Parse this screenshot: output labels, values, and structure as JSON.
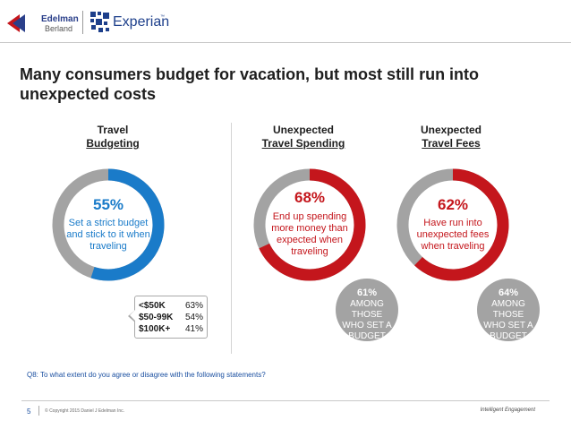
{
  "header": {
    "edelman_line1": "Edelman",
    "edelman_line2": "Berland",
    "experian": "Experian",
    "experian_tm": "™"
  },
  "title": "Many consumers budget for vacation, but most still run into unexpected costs",
  "columns": [
    {
      "head_line1": "Travel",
      "head_line2": "Budgeting"
    },
    {
      "head_line1": "Unexpected",
      "head_line2": "Travel Spending"
    },
    {
      "head_line1": "Unexpected",
      "head_line2": "Travel Fees"
    }
  ],
  "income": [
    {
      "label": "<$50K",
      "value": "63%"
    },
    {
      "label": "$50-99K",
      "value": "54%"
    },
    {
      "label": "$100K+",
      "value": "41%"
    }
  ],
  "bubbles": [
    {
      "pct": "61%",
      "line1": "AMONG",
      "line2": "THOSE",
      "line3": "WHO SET A",
      "line4": "BUDGET"
    },
    {
      "pct": "64%",
      "line1": "AMONG",
      "line2": "THOSE",
      "line3": "WHO SET A",
      "line4": "BUDGET"
    }
  ],
  "footer": {
    "question": "Q8: To what extent do you agree or disagree with the following statements?",
    "page_number": "5",
    "copyright": "© Copyright 2015 Daniel J Edelman Inc.",
    "tagline": "Intelligent Engagement"
  },
  "colors": {
    "blue": "#1a7bc9",
    "red": "#c4161c",
    "gray": "#a3a3a3"
  },
  "chart_data": [
    {
      "type": "pie",
      "variant": "donut",
      "value": 55,
      "pct_label": "55%",
      "description": "Set a strict budget and stick to it when traveling",
      "color": "#1a7bc9"
    },
    {
      "type": "pie",
      "variant": "donut",
      "value": 68,
      "pct_label": "68%",
      "description": "End up spending more money than expected when traveling",
      "color": "#c4161c"
    },
    {
      "type": "pie",
      "variant": "donut",
      "value": 62,
      "pct_label": "62%",
      "description": "Have run into unexpected fees when traveling",
      "color": "#c4161c"
    }
  ]
}
